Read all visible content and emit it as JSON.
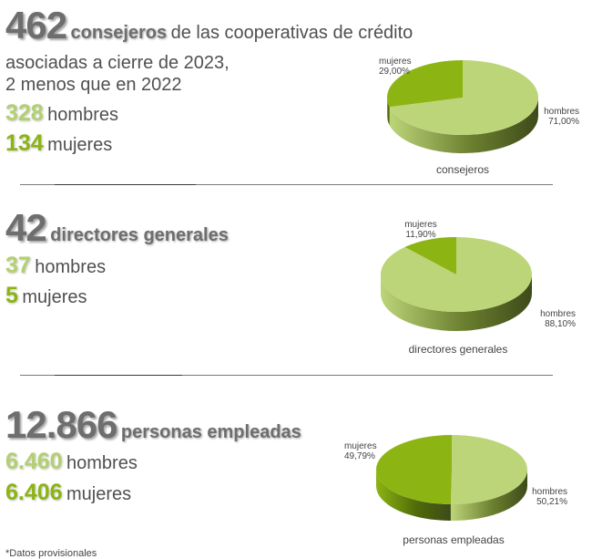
{
  "sections": [
    {
      "total": "462",
      "total_label": "consejeros",
      "desc_rest": "de las cooperativas de crédito",
      "desc_line2": "asociadas a cierre de 2023,",
      "desc_line3": "2 menos que en 2022",
      "hombres_value": "328",
      "hombres_label": "hombres",
      "mujeres_value": "134",
      "mujeres_label": "mujeres"
    },
    {
      "total": "42",
      "total_label": "directores generales",
      "hombres_value": "37",
      "hombres_label": "hombres",
      "mujeres_value": "5",
      "mujeres_label": "mujeres"
    },
    {
      "total": "12.866",
      "total_label": "personas empleadas",
      "hombres_value": "6.460",
      "hombres_label": "hombres",
      "mujeres_value": "6.406",
      "mujeres_label": "mujeres"
    }
  ],
  "footnote": "*Datos provisionales",
  "colors": {
    "hombres": "#bdd579",
    "mujeres": "#8cb413",
    "hombres_side": "#6b7f2f",
    "mujeres_side": "#4f6a08"
  },
  "chart_data": [
    {
      "type": "pie",
      "title": "consejeros",
      "categories": [
        "hombres",
        "mujeres"
      ],
      "values": [
        71.0,
        29.0
      ],
      "data_labels": [
        "71,00%",
        "29,00%"
      ]
    },
    {
      "type": "pie",
      "title": "directores generales",
      "categories": [
        "hombres",
        "mujeres"
      ],
      "values": [
        88.1,
        11.9
      ],
      "data_labels": [
        "88,10%",
        "11,90%"
      ]
    },
    {
      "type": "pie",
      "title": "personas empleadas",
      "categories": [
        "hombres",
        "mujeres"
      ],
      "values": [
        50.21,
        49.79
      ],
      "data_labels": [
        "50,21%",
        "49,79%"
      ]
    }
  ]
}
